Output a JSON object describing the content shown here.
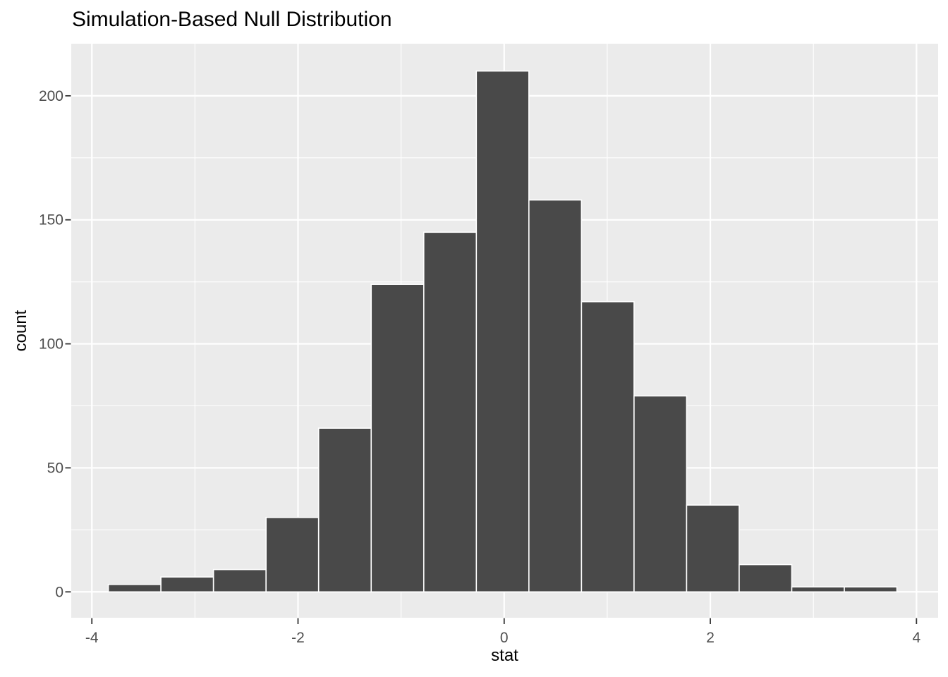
{
  "title": "Simulation-Based Null Distribution",
  "axes": {
    "x_title": "stat",
    "y_title": "count"
  },
  "chart_data": {
    "type": "bar",
    "subtype": "histogram",
    "title": "Simulation-Based Null Distribution",
    "xlabel": "stat",
    "ylabel": "count",
    "bin_width": 0.51,
    "bin_centers": [
      -3.585,
      -3.075,
      -2.565,
      -2.055,
      -1.545,
      -1.035,
      -0.525,
      -0.015,
      0.495,
      1.005,
      1.515,
      2.025,
      2.535,
      3.045,
      3.555
    ],
    "counts": [
      3,
      6,
      9,
      30,
      66,
      124,
      145,
      210,
      158,
      117,
      79,
      35,
      11,
      2,
      2
    ],
    "x_ticks": [
      -4,
      -2,
      0,
      2,
      4
    ],
    "x_minor_ticks": [
      -3,
      -1,
      1,
      3
    ],
    "y_ticks": [
      0,
      50,
      100,
      150,
      200
    ],
    "y_minor_ticks": [
      25,
      75,
      125,
      175
    ],
    "xlim": [
      -4.2,
      4.21
    ],
    "ylim": [
      -10.44,
      221
    ],
    "grid": true,
    "legend_position": "none"
  },
  "colors": {
    "background": "#FFFFFF",
    "panel_bg": "#EBEBEB",
    "bar_fill": "#494949",
    "bar_stroke": "#FFFFFF",
    "grid_major": "#FFFFFF",
    "grid_minor": "#FFFFFF",
    "tick_mark": "#333333",
    "tick_label": "#4D4D4D",
    "title_text": "#000000"
  }
}
